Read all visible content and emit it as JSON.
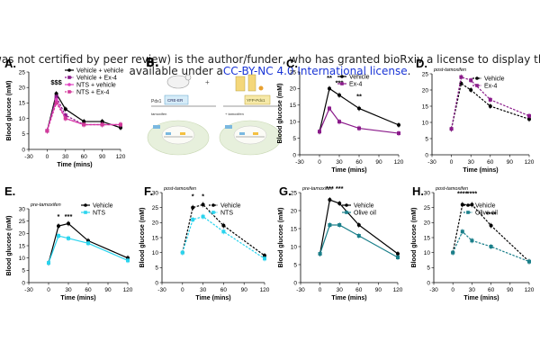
{
  "banner": {
    "line1": "was not certified by peer review) is the author/funder, who has granted bioRxiv a license to display the preprint in perpetuity. It is made",
    "line2_prefix": "available under a",
    "line2_link": "CC-BY-NC 4.0 International license",
    "line2_suffix": "."
  },
  "diagram": {
    "title_gene": "Pdx1",
    "label_top": "tamoxifen",
    "label_top2": "+ tamoxifen",
    "box_left": "CRE-ER",
    "box_right": "YFP-Pdx1"
  },
  "colors": {
    "black": "#000000",
    "purple": "#8a1a8a",
    "magenta": "#e040c0",
    "cyan": "#2ad4ee",
    "teal": "#1a7f8a",
    "pink": "#d23a9a"
  },
  "panels": [
    {
      "letter": "A.",
      "chart_data": {
        "type": "line",
        "subtitle": "",
        "xlabel": "Time (mins)",
        "ylabel": "Blood glucose (mM)",
        "xlim": [
          -30,
          120
        ],
        "ylim": [
          0,
          25
        ],
        "xticks": [
          -30,
          0,
          30,
          60,
          90,
          120
        ],
        "yticks": [
          0,
          5,
          10,
          15,
          20,
          25
        ],
        "x": [
          0,
          15,
          30,
          60,
          90,
          120
        ],
        "series": [
          {
            "name": "Vehicle + vehicle",
            "color": "#000000",
            "dashed": false,
            "values": [
              6,
              18,
              13,
              9,
              9,
              7
            ]
          },
          {
            "name": "Vehicle + Ex-4",
            "color": "#8a1a8a",
            "dashed": true,
            "values": [
              6,
              17,
              11,
              8,
              8,
              8
            ]
          },
          {
            "name": "NTS + vehicle",
            "color": "#e040c0",
            "dashed": false,
            "values": [
              6,
              16,
              10,
              8,
              8,
              8
            ]
          },
          {
            "name": "NTS + Ex-4",
            "color": "#d23a9a",
            "dashed": true,
            "values": [
              6,
              15,
              10,
              8,
              8,
              8
            ]
          }
        ],
        "annotations": [
          {
            "x": 15,
            "y": 21,
            "text": "$$$"
          }
        ]
      }
    },
    {
      "letter": "C.",
      "chart_data": {
        "type": "line",
        "subtitle": "",
        "xlabel": "Time (mins)",
        "ylabel": "Blood glucose (mM)",
        "xlim": [
          -30,
          120
        ],
        "ylim": [
          0,
          25
        ],
        "xticks": [
          -30,
          0,
          30,
          60,
          90,
          120
        ],
        "yticks": [
          0,
          5,
          10,
          15,
          20,
          25
        ],
        "x": [
          0,
          15,
          30,
          60,
          120
        ],
        "series": [
          {
            "name": "Vehicle",
            "color": "#000000",
            "dashed": false,
            "values": [
              7,
              20,
              18,
              14,
              9
            ]
          },
          {
            "name": "Ex-4",
            "color": "#8a1a8a",
            "dashed": false,
            "values": [
              7,
              14,
              10,
              8,
              6.5
            ]
          }
        ],
        "annotations": [
          {
            "x": 15,
            "y": 22.5,
            "text": "**"
          },
          {
            "x": 30,
            "y": 21,
            "text": "***"
          },
          {
            "x": 60,
            "y": 17,
            "text": "**"
          }
        ]
      }
    },
    {
      "letter": "D.",
      "chart_data": {
        "type": "line",
        "subtitle": "post-tamoxifen",
        "xlabel": "Time (mins)",
        "ylabel": "",
        "xlim": [
          -30,
          120
        ],
        "ylim": [
          0,
          25
        ],
        "xticks": [
          -30,
          0,
          30,
          60,
          90,
          120
        ],
        "yticks": [
          0,
          5,
          10,
          15,
          20,
          25
        ],
        "x": [
          0,
          15,
          30,
          60,
          120
        ],
        "series": [
          {
            "name": "Vehicle",
            "color": "#000000",
            "dashed": true,
            "values": [
              8,
              22,
              20,
              15,
              11
            ]
          },
          {
            "name": "Ex-4",
            "color": "#8a1a8a",
            "dashed": true,
            "values": [
              8,
              24,
              23,
              17,
              12
            ]
          }
        ],
        "annotations": []
      }
    },
    {
      "letter": "E.",
      "chart_data": {
        "type": "line",
        "subtitle": "pre-tamoxifen",
        "xlabel": "Time (mins)",
        "ylabel": "Blood glucose (mM)",
        "xlim": [
          -30,
          120
        ],
        "ylim": [
          0,
          30
        ],
        "xticks": [
          -30,
          0,
          30,
          60,
          90,
          120
        ],
        "yticks": [
          0,
          5,
          10,
          15,
          20,
          25,
          30
        ],
        "x": [
          0,
          15,
          30,
          60,
          120
        ],
        "series": [
          {
            "name": "Vehicle",
            "color": "#000000",
            "dashed": false,
            "values": [
              8,
              23,
              24,
              17,
              10
            ]
          },
          {
            "name": "NTS",
            "color": "#2ad4ee",
            "dashed": false,
            "values": [
              8,
              19,
              18,
              16,
              9
            ]
          }
        ],
        "annotations": [
          {
            "x": 15,
            "y": 26,
            "text": "*"
          },
          {
            "x": 30,
            "y": 26,
            "text": "***"
          }
        ]
      }
    },
    {
      "letter": "F.",
      "chart_data": {
        "type": "line",
        "subtitle": "post-tamoxifen",
        "xlabel": "Time (mins)",
        "ylabel": "Blood glucose (mM)",
        "xlim": [
          -30,
          120
        ],
        "ylim": [
          0,
          30
        ],
        "xticks": [
          -30,
          0,
          30,
          60,
          90,
          120
        ],
        "yticks": [
          0,
          5,
          10,
          15,
          20,
          25,
          30
        ],
        "x": [
          0,
          15,
          30,
          60,
          120
        ],
        "series": [
          {
            "name": "Vehicle",
            "color": "#000000",
            "dashed": true,
            "values": [
              10,
              25,
              26,
              19,
              9
            ]
          },
          {
            "name": "NTS",
            "color": "#2ad4ee",
            "dashed": true,
            "values": [
              10,
              21,
              22,
              17,
              8
            ]
          }
        ],
        "annotations": [
          {
            "x": 15,
            "y": 28,
            "text": "*"
          },
          {
            "x": 30,
            "y": 28,
            "text": "*"
          }
        ]
      }
    },
    {
      "letter": "G.",
      "chart_data": {
        "type": "line",
        "subtitle": "pre-tamoxifen",
        "xlabel": "Time (mins)",
        "ylabel": "Blood glucose (mM)",
        "xlim": [
          -30,
          120
        ],
        "ylim": [
          0,
          25
        ],
        "xticks": [
          -30,
          0,
          30,
          60,
          90,
          120
        ],
        "yticks": [
          0,
          5,
          10,
          15,
          20,
          25
        ],
        "x": [
          0,
          15,
          30,
          60,
          120
        ],
        "series": [
          {
            "name": "Vehicle",
            "color": "#000000",
            "dashed": false,
            "values": [
              8,
              23,
              22,
              16,
              8
            ]
          },
          {
            "name": "Olive oil",
            "color": "#1a7f8a",
            "dashed": false,
            "values": [
              8,
              16,
              16,
              13,
              7
            ]
          }
        ],
        "annotations": [
          {
            "x": 15,
            "y": 25.5,
            "text": "***"
          },
          {
            "x": 30,
            "y": 25.5,
            "text": "***"
          }
        ]
      }
    },
    {
      "letter": "H.",
      "chart_data": {
        "type": "line",
        "subtitle": "post-tamoxifen",
        "xlabel": "Time (mins)",
        "ylabel": "Blood glucose (mM)",
        "xlim": [
          -30,
          120
        ],
        "ylim": [
          0,
          30
        ],
        "xticks": [
          -30,
          0,
          30,
          60,
          90,
          120
        ],
        "yticks": [
          0,
          5,
          10,
          15,
          20,
          25,
          30
        ],
        "x": [
          0,
          15,
          30,
          60,
          120
        ],
        "series": [
          {
            "name": "Vehicle",
            "color": "#000000",
            "dashed": true,
            "values": [
              10,
              26,
              26,
              19,
              7
            ]
          },
          {
            "name": "Olive oil",
            "color": "#1a7f8a",
            "dashed": true,
            "values": [
              10,
              17,
              14,
              12,
              7
            ]
          }
        ],
        "annotations": [
          {
            "x": 15,
            "y": 29,
            "text": "****"
          },
          {
            "x": 30,
            "y": 29,
            "text": "****"
          },
          {
            "x": 60,
            "y": 22,
            "text": "****"
          }
        ]
      }
    }
  ],
  "panel_b_letter": "B."
}
